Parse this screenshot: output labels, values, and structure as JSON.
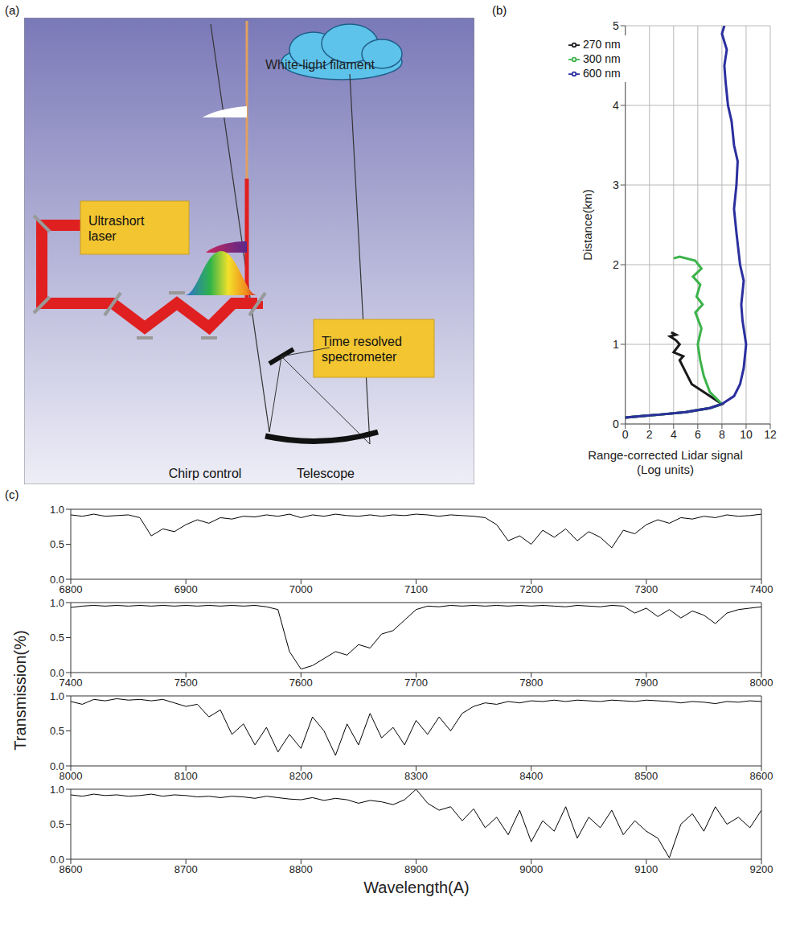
{
  "diagram": {
    "panel": "(a)",
    "labels": {
      "laser": "Ultrashort laser",
      "spectrometer": "Time resolved spectrometer",
      "filament": "White-light filament",
      "chirp": "Chirp control",
      "telescope": "Telescope"
    }
  },
  "chart_data": [
    {
      "panel": "(b)",
      "type": "line",
      "xlabel": "Range-corrected Lidar signal (Log units)",
      "ylabel": "Distance(km)",
      "xlim": [
        0,
        12
      ],
      "xticks": [
        0,
        2,
        4,
        6,
        8,
        10,
        12
      ],
      "ylim": [
        0,
        5
      ],
      "yticks": [
        0,
        1,
        2,
        3,
        4,
        5
      ],
      "grid": true,
      "legend": "upper left",
      "series": [
        {
          "name": "270 nm",
          "color": "#1a1a1a",
          "x": [
            0,
            1.5,
            3,
            5,
            7,
            8,
            7,
            5.5,
            5,
            4.5,
            4.8,
            4,
            4.5,
            4.2,
            3.7,
            4.2,
            3.8
          ],
          "values": [
            0.08,
            0.1,
            0.12,
            0.15,
            0.2,
            0.25,
            0.35,
            0.5,
            0.65,
            0.8,
            0.85,
            0.9,
            1.0,
            1.05,
            1.1,
            1.12,
            1.15
          ]
        },
        {
          "name": "300 nm",
          "color": "#3cb34a",
          "x": [
            0,
            1.5,
            3,
            5,
            7,
            8,
            7,
            6.5,
            6.2,
            6,
            6.3,
            5.8,
            6.4,
            5.9,
            6.2,
            5.6,
            6.3,
            5.8,
            4.5,
            4
          ],
          "values": [
            0.08,
            0.1,
            0.12,
            0.15,
            0.2,
            0.25,
            0.4,
            0.6,
            0.8,
            1.0,
            1.2,
            1.4,
            1.5,
            1.6,
            1.75,
            1.85,
            1.95,
            2.05,
            2.1,
            2.08
          ]
        },
        {
          "name": "600 nm",
          "color": "#2b2f9e",
          "x": [
            0,
            1.5,
            3,
            5,
            7,
            8,
            9,
            9.5,
            9.8,
            10,
            9.7,
            9.6,
            9.8,
            9.5,
            9.2,
            9.0,
            9.2,
            9.3,
            9.0,
            8.8,
            8.5,
            8.3,
            8.2,
            8.4,
            8.0,
            8.2
          ],
          "values": [
            0.08,
            0.1,
            0.12,
            0.15,
            0.2,
            0.25,
            0.35,
            0.5,
            0.7,
            1.0,
            1.3,
            1.5,
            1.8,
            2.0,
            2.4,
            2.7,
            3.0,
            3.3,
            3.5,
            3.8,
            4.0,
            4.3,
            4.5,
            4.7,
            4.9,
            5.0
          ]
        }
      ]
    },
    {
      "panel": "(c)",
      "type": "line",
      "xlabel": "Wavelength(A)",
      "ylabel": "Transmission(%)",
      "subplots": [
        {
          "type": "line",
          "color": "#000000",
          "xlim": [
            6800,
            7400
          ],
          "xticks": [
            6800,
            6900,
            7000,
            7100,
            7200,
            7300,
            7400
          ],
          "ylim": [
            0,
            1
          ],
          "yticks": [
            {
              "value": 0,
              "label": "0.0"
            },
            {
              "value": 0.5,
              "label": "0.5"
            },
            {
              "value": 1,
              "label": "1.0"
            }
          ],
          "x": [
            6800,
            6810,
            6820,
            6830,
            6840,
            6850,
            6860,
            6870,
            6880,
            6890,
            6900,
            6910,
            6920,
            6930,
            6940,
            6950,
            6960,
            6970,
            6980,
            6990,
            7000,
            7010,
            7020,
            7030,
            7040,
            7050,
            7060,
            7070,
            7080,
            7090,
            7100,
            7110,
            7120,
            7130,
            7140,
            7150,
            7160,
            7170,
            7180,
            7190,
            7200,
            7210,
            7220,
            7230,
            7240,
            7250,
            7260,
            7270,
            7280,
            7290,
            7300,
            7310,
            7320,
            7330,
            7340,
            7350,
            7360,
            7370,
            7380,
            7390,
            7400
          ],
          "values": [
            0.92,
            0.9,
            0.93,
            0.9,
            0.91,
            0.92,
            0.88,
            0.62,
            0.72,
            0.68,
            0.78,
            0.85,
            0.8,
            0.88,
            0.86,
            0.9,
            0.89,
            0.92,
            0.9,
            0.93,
            0.88,
            0.92,
            0.9,
            0.93,
            0.91,
            0.9,
            0.92,
            0.9,
            0.92,
            0.91,
            0.93,
            0.92,
            0.9,
            0.92,
            0.91,
            0.9,
            0.88,
            0.78,
            0.55,
            0.62,
            0.5,
            0.7,
            0.6,
            0.72,
            0.55,
            0.68,
            0.6,
            0.45,
            0.7,
            0.65,
            0.78,
            0.85,
            0.8,
            0.88,
            0.86,
            0.9,
            0.88,
            0.92,
            0.9,
            0.91,
            0.93
          ]
        },
        {
          "type": "line",
          "color": "#000000",
          "xlim": [
            7400,
            8000
          ],
          "xticks": [
            7400,
            7500,
            7600,
            7700,
            7800,
            7900,
            8000
          ],
          "ylim": [
            0,
            1
          ],
          "yticks": [
            {
              "value": 0,
              "label": "0.0"
            },
            {
              "value": 0.5,
              "label": "0.5"
            },
            {
              "value": 1,
              "label": "1.0"
            }
          ],
          "x": [
            7400,
            7410,
            7420,
            7430,
            7440,
            7450,
            7460,
            7470,
            7480,
            7490,
            7500,
            7510,
            7520,
            7530,
            7540,
            7550,
            7560,
            7570,
            7580,
            7590,
            7600,
            7610,
            7620,
            7630,
            7640,
            7650,
            7660,
            7670,
            7680,
            7690,
            7700,
            7710,
            7720,
            7730,
            7740,
            7750,
            7760,
            7770,
            7780,
            7790,
            7800,
            7810,
            7820,
            7830,
            7840,
            7850,
            7860,
            7870,
            7880,
            7890,
            7900,
            7910,
            7920,
            7930,
            7940,
            7950,
            7960,
            7970,
            7980,
            7990,
            8000
          ],
          "values": [
            0.93,
            0.95,
            0.96,
            0.95,
            0.96,
            0.95,
            0.96,
            0.95,
            0.96,
            0.95,
            0.96,
            0.95,
            0.96,
            0.95,
            0.96,
            0.95,
            0.96,
            0.94,
            0.9,
            0.3,
            0.05,
            0.1,
            0.2,
            0.3,
            0.25,
            0.4,
            0.35,
            0.55,
            0.6,
            0.75,
            0.9,
            0.95,
            0.94,
            0.96,
            0.95,
            0.96,
            0.95,
            0.96,
            0.95,
            0.96,
            0.95,
            0.96,
            0.95,
            0.94,
            0.96,
            0.95,
            0.94,
            0.96,
            0.95,
            0.85,
            0.92,
            0.8,
            0.9,
            0.78,
            0.88,
            0.82,
            0.7,
            0.85,
            0.9,
            0.92,
            0.94
          ]
        },
        {
          "type": "line",
          "color": "#000000",
          "xlim": [
            8000,
            8600
          ],
          "xticks": [
            8000,
            8100,
            8200,
            8300,
            8400,
            8500,
            8600
          ],
          "ylim": [
            0,
            1
          ],
          "yticks": [
            {
              "value": 0,
              "label": "0.0"
            },
            {
              "value": 0.5,
              "label": "0.5"
            },
            {
              "value": 1,
              "label": "1.0"
            }
          ],
          "x": [
            8000,
            8010,
            8020,
            8030,
            8040,
            8050,
            8060,
            8070,
            8080,
            8090,
            8100,
            8110,
            8120,
            8130,
            8140,
            8150,
            8160,
            8170,
            8180,
            8190,
            8200,
            8210,
            8220,
            8230,
            8240,
            8250,
            8260,
            8270,
            8280,
            8290,
            8300,
            8310,
            8320,
            8330,
            8340,
            8350,
            8360,
            8370,
            8380,
            8390,
            8400,
            8410,
            8420,
            8430,
            8440,
            8450,
            8460,
            8470,
            8480,
            8490,
            8500,
            8510,
            8520,
            8530,
            8540,
            8550,
            8560,
            8570,
            8580,
            8590,
            8600
          ],
          "values": [
            0.92,
            0.88,
            0.95,
            0.93,
            0.96,
            0.94,
            0.95,
            0.93,
            0.95,
            0.9,
            0.85,
            0.88,
            0.7,
            0.8,
            0.45,
            0.6,
            0.3,
            0.55,
            0.2,
            0.45,
            0.25,
            0.7,
            0.5,
            0.15,
            0.6,
            0.3,
            0.75,
            0.4,
            0.55,
            0.3,
            0.65,
            0.45,
            0.7,
            0.5,
            0.75,
            0.85,
            0.9,
            0.88,
            0.92,
            0.9,
            0.93,
            0.92,
            0.94,
            0.92,
            0.94,
            0.93,
            0.92,
            0.94,
            0.93,
            0.92,
            0.94,
            0.93,
            0.92,
            0.9,
            0.92,
            0.91,
            0.89,
            0.92,
            0.91,
            0.93,
            0.92
          ]
        },
        {
          "type": "line",
          "color": "#000000",
          "xlim": [
            8600,
            9200
          ],
          "xticks": [
            8600,
            8700,
            8800,
            8900,
            9000,
            9100,
            9200
          ],
          "ylim": [
            0,
            1
          ],
          "yticks": [
            {
              "value": 0,
              "label": "0.0"
            },
            {
              "value": 0.5,
              "label": "0.5"
            },
            {
              "value": 1,
              "label": "1.0"
            }
          ],
          "x": [
            8600,
            8610,
            8620,
            8630,
            8640,
            8650,
            8660,
            8670,
            8680,
            8690,
            8700,
            8710,
            8720,
            8730,
            8740,
            8750,
            8760,
            8770,
            8780,
            8790,
            8800,
            8810,
            8820,
            8830,
            8840,
            8850,
            8860,
            8870,
            8880,
            8890,
            8900,
            8910,
            8920,
            8930,
            8940,
            8950,
            8960,
            8970,
            8980,
            8990,
            9000,
            9010,
            9020,
            9030,
            9040,
            9050,
            9060,
            9070,
            9080,
            9090,
            9100,
            9110,
            9120,
            9130,
            9140,
            9150,
            9160,
            9170,
            9180,
            9190,
            9200
          ],
          "values": [
            0.92,
            0.9,
            0.93,
            0.91,
            0.92,
            0.9,
            0.91,
            0.93,
            0.9,
            0.92,
            0.91,
            0.89,
            0.9,
            0.88,
            0.9,
            0.89,
            0.87,
            0.9,
            0.88,
            0.86,
            0.85,
            0.88,
            0.84,
            0.87,
            0.85,
            0.8,
            0.84,
            0.82,
            0.78,
            0.85,
            1.0,
            0.8,
            0.7,
            0.75,
            0.55,
            0.72,
            0.45,
            0.6,
            0.35,
            0.7,
            0.25,
            0.55,
            0.4,
            0.75,
            0.3,
            0.6,
            0.45,
            0.7,
            0.35,
            0.55,
            0.4,
            0.3,
            0.02,
            0.5,
            0.65,
            0.4,
            0.75,
            0.5,
            0.6,
            0.45,
            0.7
          ]
        }
      ]
    }
  ]
}
